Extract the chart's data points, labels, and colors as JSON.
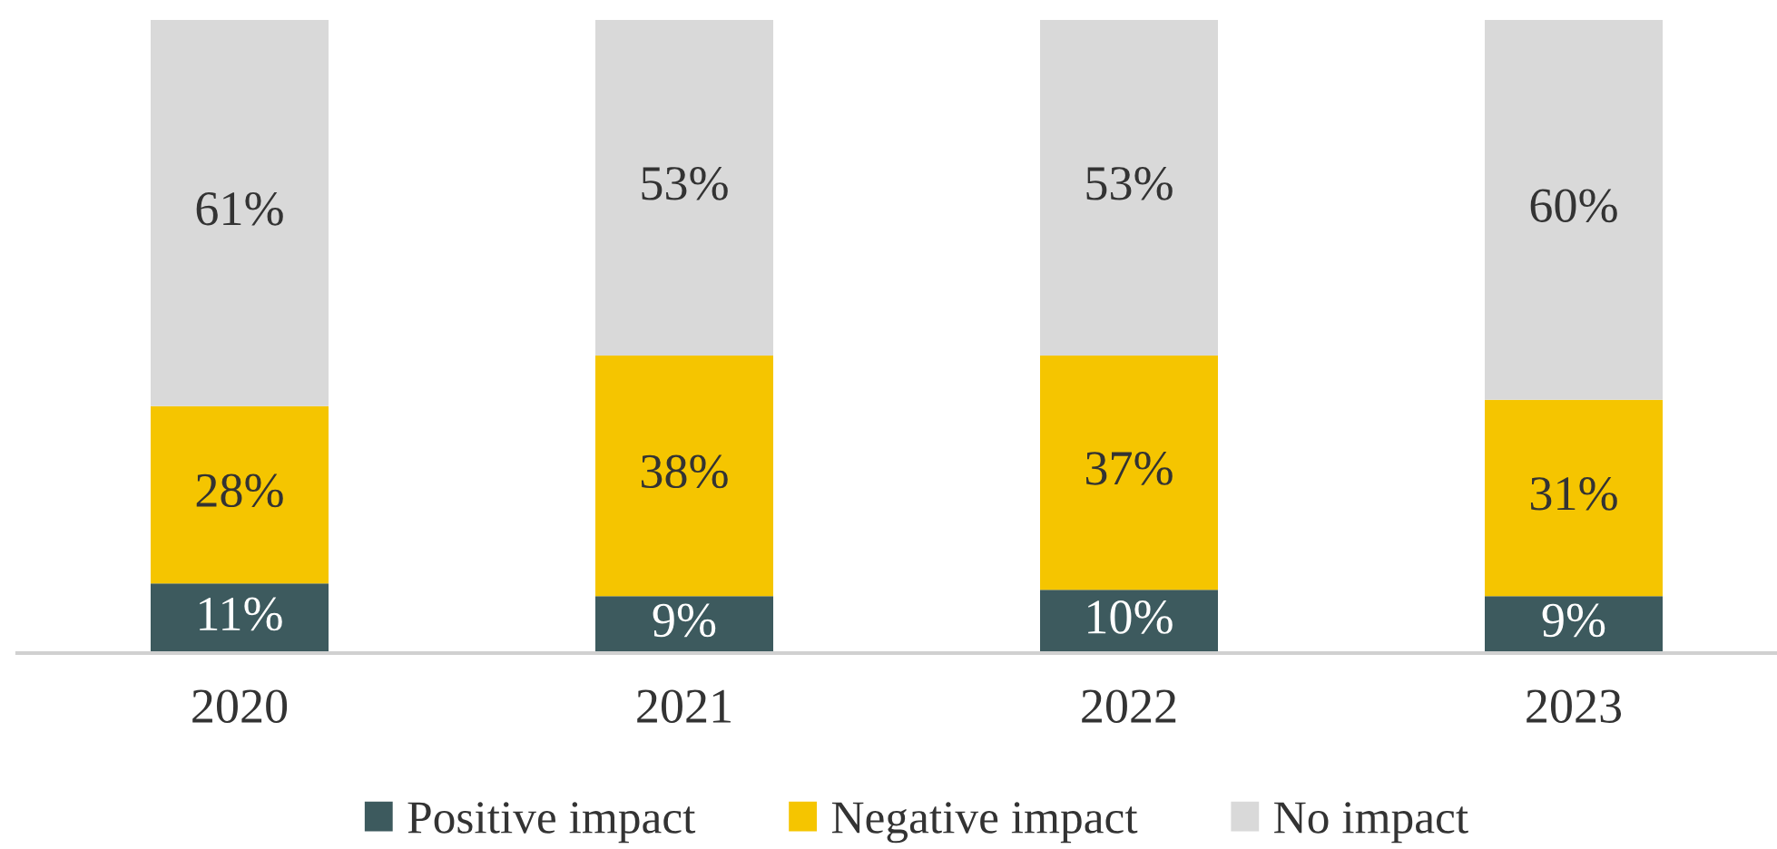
{
  "chart_data": {
    "type": "bar",
    "stacked": true,
    "legend": "bottom",
    "grid": false,
    "categories": [
      "2020",
      "2021",
      "2022",
      "2023"
    ],
    "series": [
      {
        "name": "Positive impact",
        "color": "#3d5a5e",
        "values": [
          11,
          9,
          10,
          9
        ],
        "value_labels": [
          "11%",
          "9%",
          "10%",
          "9%"
        ]
      },
      {
        "name": "Negative impact",
        "color": "#f5c500",
        "values": [
          28,
          38,
          37,
          31
        ],
        "value_labels": [
          "28%",
          "38%",
          "37%",
          "31%"
        ]
      },
      {
        "name": "No impact",
        "color": "#d9d9d9",
        "values": [
          61,
          53,
          53,
          60
        ],
        "value_labels": [
          "61%",
          "53%",
          "53%",
          "60%"
        ]
      }
    ]
  }
}
